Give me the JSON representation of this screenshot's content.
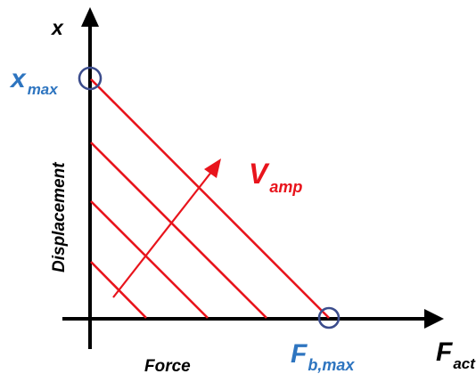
{
  "labels": {
    "y_axis_symbol": "x",
    "x_axis_symbol_main": "F",
    "x_axis_symbol_sub": "act",
    "y_axis_title": "Displacement",
    "x_axis_title": "Force",
    "x_max_main": "x",
    "x_max_sub": "max",
    "f_block_main": "F",
    "f_block_sub": "b,max",
    "v_amp_main": "V",
    "v_amp_sub": "amp"
  },
  "line_count": 4,
  "colors": {
    "axis": "#000000",
    "lines": "#e8141c",
    "highlight_circle": "#3b4c8c",
    "key_label": "#2e75c0",
    "v_label": "#e8141c",
    "axis_title": "#000000"
  }
}
